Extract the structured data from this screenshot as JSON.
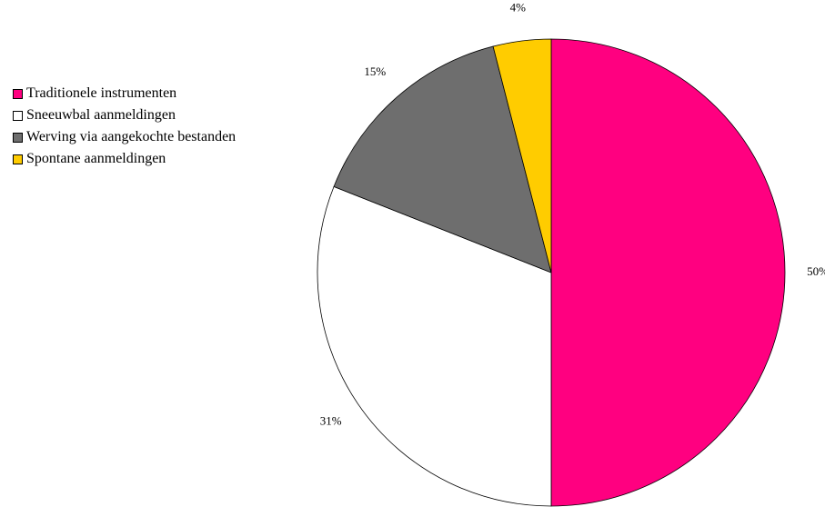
{
  "chart_data": {
    "type": "pie",
    "categories": [
      "Traditionele instrumenten",
      "Sneeuwbal aanmeldingen",
      "Werving via aangekochte bestanden",
      "Spontane aanmeldingen"
    ],
    "values": [
      50,
      31,
      15,
      4
    ],
    "value_labels": [
      "50%",
      "31%",
      "15%",
      "4%"
    ],
    "colors": [
      "#FF0080",
      "#FFFFFF",
      "#6E6E6E",
      "#FFCC00"
    ],
    "start_angle_deg": 0,
    "direction": "clockwise",
    "legend_position": "left"
  }
}
